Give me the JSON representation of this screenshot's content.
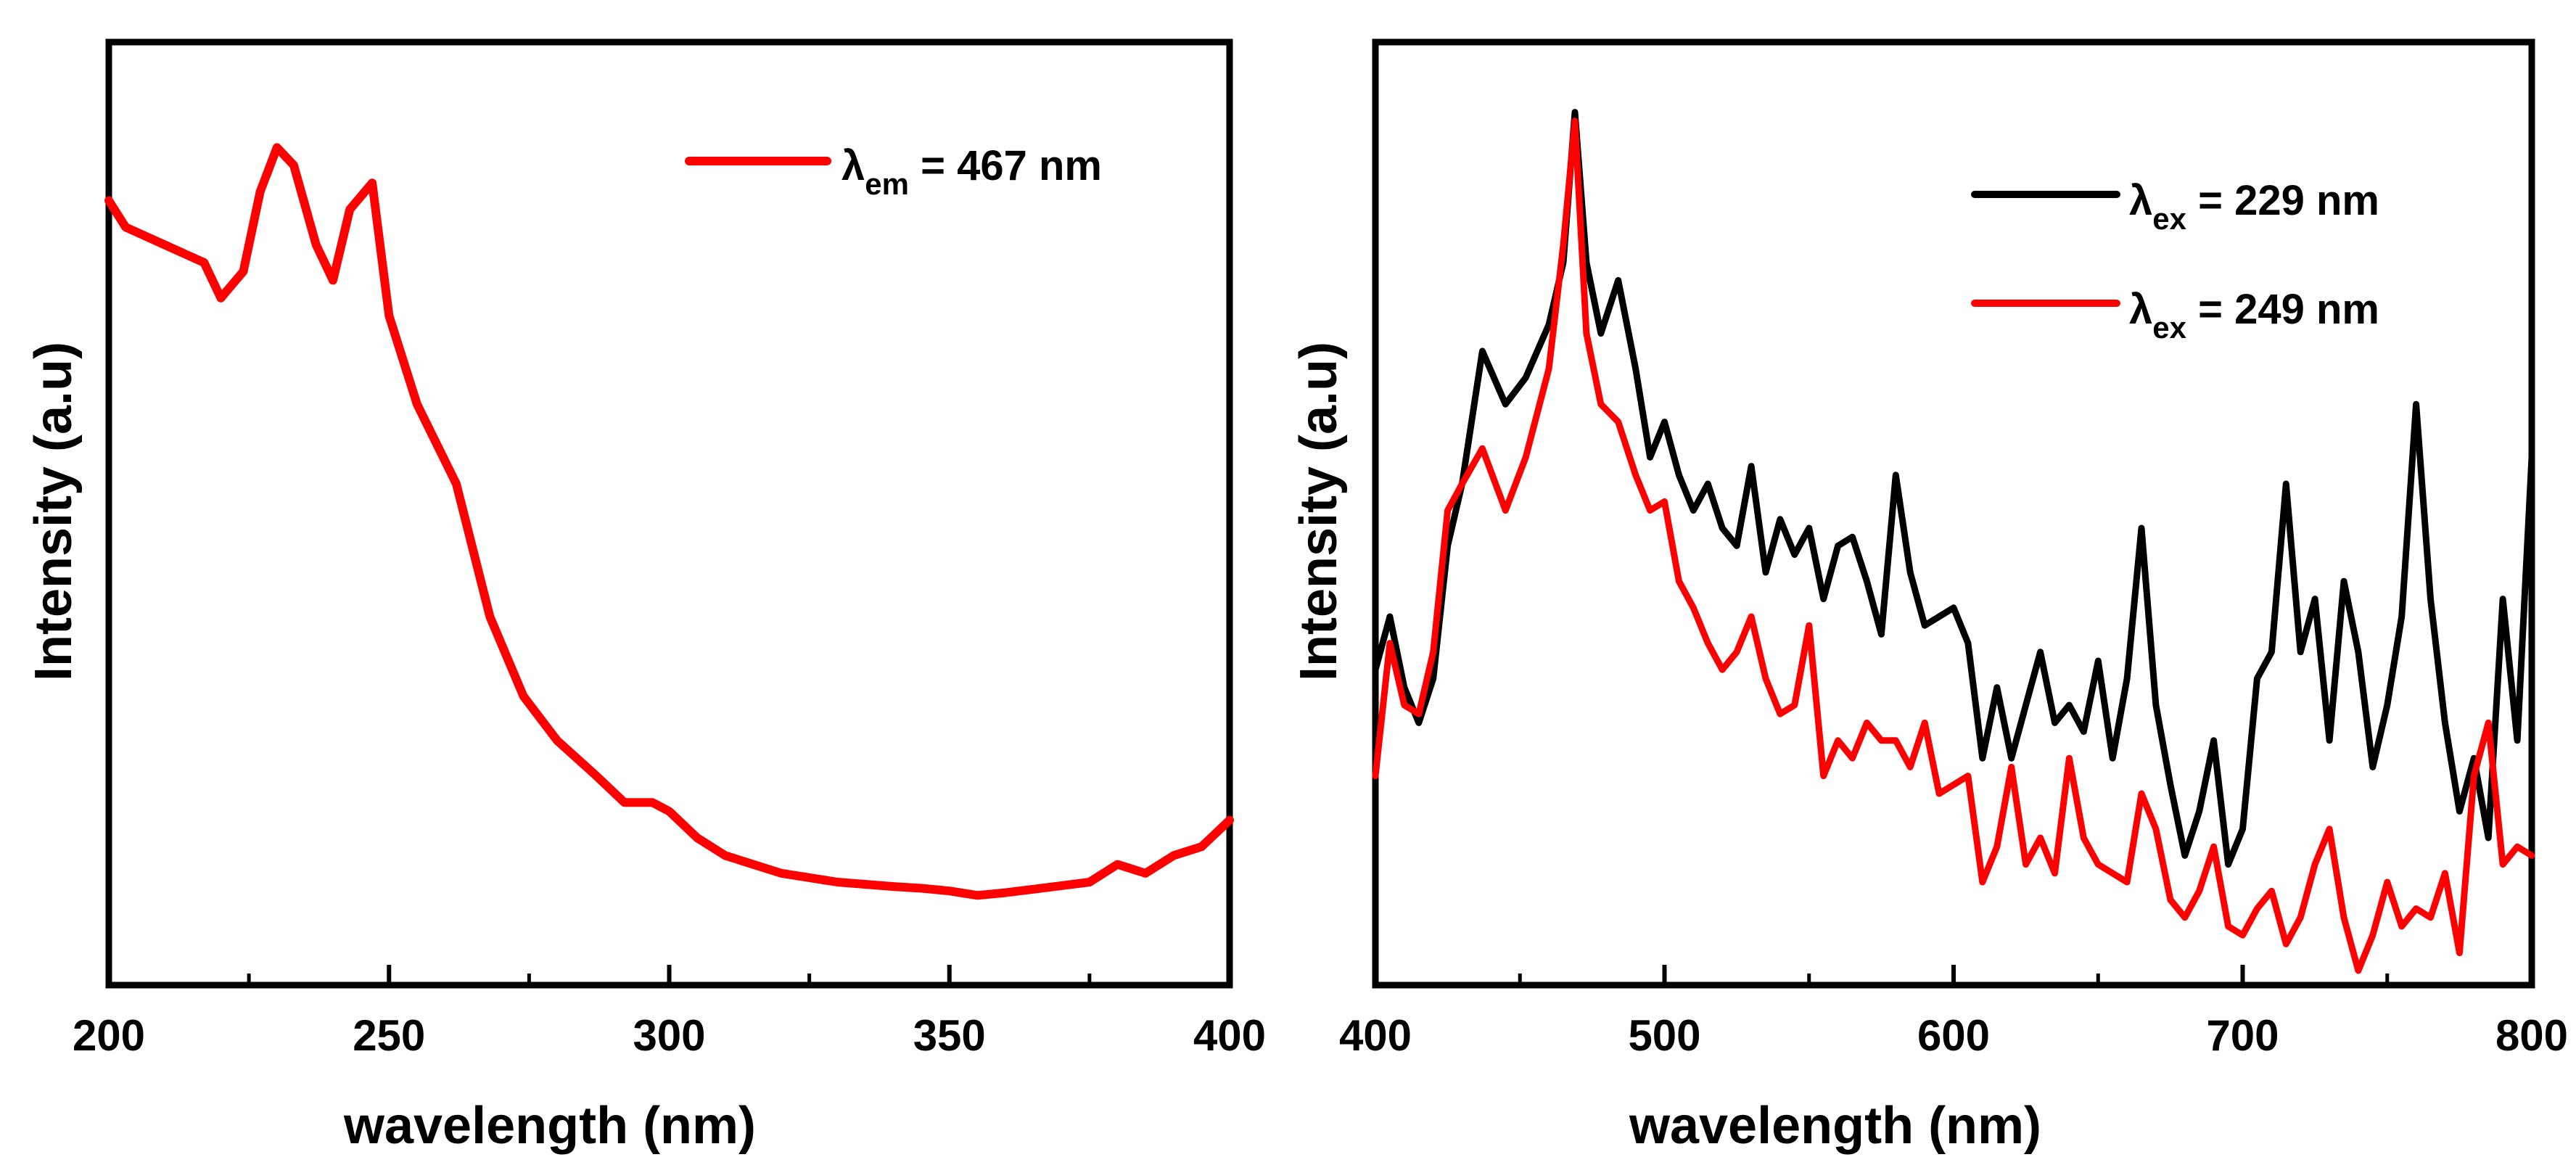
{
  "chart_data": [
    {
      "type": "line",
      "xlabel": "wavelength (nm)",
      "ylabel": "Intensity (a.u)",
      "xlim": [
        200,
        400
      ],
      "ylim": [
        0,
        1
      ],
      "xticks": [
        "200",
        "250",
        "300",
        "350",
        "400"
      ],
      "legend_position": "top-right",
      "series": [
        {
          "legend_symbol": "λ",
          "legend_subscript": "em",
          "legend_value": " = 467 nm",
          "color": "#ff0000",
          "x": [
            200,
            203,
            210,
            217,
            220,
            224,
            227,
            230,
            233,
            237,
            240,
            243,
            247,
            250,
            255,
            262,
            268,
            274,
            280,
            287,
            292,
            297,
            300,
            305,
            310,
            315,
            320,
            330,
            340,
            345,
            350,
            355,
            360,
            365,
            370,
            375,
            380,
            385,
            390,
            395,
            400
          ],
          "y": [
            0.87,
            0.84,
            0.82,
            0.8,
            0.76,
            0.79,
            0.88,
            0.93,
            0.91,
            0.82,
            0.78,
            0.86,
            0.89,
            0.74,
            0.64,
            0.55,
            0.4,
            0.31,
            0.26,
            0.22,
            0.19,
            0.19,
            0.18,
            0.15,
            0.13,
            0.12,
            0.11,
            0.1,
            0.095,
            0.093,
            0.09,
            0.085,
            0.088,
            0.092,
            0.096,
            0.1,
            0.12,
            0.11,
            0.13,
            0.14,
            0.17
          ]
        }
      ]
    },
    {
      "type": "line",
      "xlabel": "wavelength (nm)",
      "ylabel": "Intensity (a.u)",
      "xlim": [
        400,
        800
      ],
      "ylim": [
        0,
        1
      ],
      "xticks": [
        "400",
        "500",
        "600",
        "700",
        "800"
      ],
      "legend_position": "top-right",
      "series": [
        {
          "legend_symbol": "λ",
          "legend_subscript": "ex",
          "legend_value": " = 229 nm",
          "color": "#000000",
          "x": [
            400,
            405,
            410,
            415,
            420,
            425,
            430,
            437,
            445,
            452,
            460,
            465,
            469,
            473,
            478,
            484,
            490,
            495,
            500,
            505,
            510,
            515,
            520,
            525,
            530,
            535,
            540,
            545,
            550,
            555,
            560,
            565,
            570,
            575,
            580,
            585,
            590,
            595,
            600,
            605,
            610,
            615,
            620,
            625,
            630,
            635,
            640,
            645,
            650,
            655,
            660,
            665,
            670,
            675,
            680,
            685,
            690,
            695,
            700,
            705,
            710,
            715,
            720,
            725,
            730,
            735,
            740,
            745,
            750,
            755,
            760,
            765,
            770,
            775,
            780,
            785,
            790,
            795,
            800
          ],
          "y": [
            0.34,
            0.4,
            0.32,
            0.28,
            0.33,
            0.48,
            0.55,
            0.7,
            0.64,
            0.67,
            0.73,
            0.8,
            0.97,
            0.8,
            0.72,
            0.78,
            0.68,
            0.58,
            0.62,
            0.56,
            0.52,
            0.55,
            0.5,
            0.48,
            0.57,
            0.45,
            0.51,
            0.47,
            0.5,
            0.42,
            0.48,
            0.49,
            0.44,
            0.38,
            0.56,
            0.45,
            0.39,
            0.4,
            0.41,
            0.37,
            0.24,
            0.32,
            0.24,
            0.3,
            0.36,
            0.28,
            0.3,
            0.27,
            0.35,
            0.24,
            0.33,
            0.5,
            0.3,
            0.21,
            0.13,
            0.18,
            0.26,
            0.12,
            0.16,
            0.33,
            0.36,
            0.55,
            0.36,
            0.42,
            0.26,
            0.44,
            0.36,
            0.23,
            0.3,
            0.4,
            0.64,
            0.42,
            0.28,
            0.18,
            0.24,
            0.15,
            0.42,
            0.26,
            0.58
          ]
        },
        {
          "legend_symbol": "λ",
          "legend_subscript": "ex",
          "legend_value": " = 249 nm",
          "color": "#ff0000",
          "x": [
            400,
            405,
            410,
            415,
            420,
            425,
            430,
            437,
            445,
            452,
            460,
            465,
            469,
            473,
            478,
            484,
            490,
            495,
            500,
            505,
            510,
            515,
            520,
            525,
            530,
            535,
            540,
            545,
            550,
            555,
            560,
            565,
            570,
            575,
            580,
            585,
            590,
            595,
            600,
            605,
            610,
            615,
            620,
            625,
            630,
            635,
            640,
            645,
            650,
            655,
            660,
            665,
            670,
            675,
            680,
            685,
            690,
            695,
            700,
            705,
            710,
            715,
            720,
            725,
            730,
            735,
            740,
            745,
            750,
            755,
            760,
            765,
            770,
            775,
            780,
            785,
            790,
            795,
            800
          ],
          "y": [
            0.22,
            0.37,
            0.3,
            0.29,
            0.36,
            0.52,
            0.55,
            0.59,
            0.52,
            0.58,
            0.68,
            0.82,
            0.96,
            0.72,
            0.64,
            0.62,
            0.56,
            0.52,
            0.53,
            0.44,
            0.41,
            0.37,
            0.34,
            0.36,
            0.4,
            0.33,
            0.29,
            0.3,
            0.39,
            0.22,
            0.26,
            0.24,
            0.28,
            0.26,
            0.26,
            0.23,
            0.28,
            0.2,
            0.21,
            0.22,
            0.1,
            0.14,
            0.23,
            0.12,
            0.15,
            0.11,
            0.24,
            0.15,
            0.12,
            0.11,
            0.1,
            0.2,
            0.16,
            0.08,
            0.06,
            0.09,
            0.14,
            0.05,
            0.04,
            0.07,
            0.09,
            0.03,
            0.06,
            0.12,
            0.16,
            0.06,
            0.0,
            0.04,
            0.1,
            0.05,
            0.07,
            0.06,
            0.11,
            0.02,
            0.22,
            0.28,
            0.12,
            0.14,
            0.13
          ]
        }
      ]
    }
  ]
}
